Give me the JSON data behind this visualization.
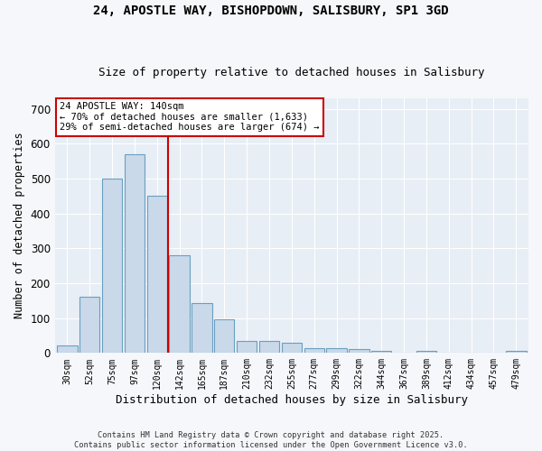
{
  "title": "24, APOSTLE WAY, BISHOPDOWN, SALISBURY, SP1 3GD",
  "subtitle": "Size of property relative to detached houses in Salisbury",
  "xlabel": "Distribution of detached houses by size in Salisbury",
  "ylabel": "Number of detached properties",
  "bar_labels": [
    "30sqm",
    "52sqm",
    "75sqm",
    "97sqm",
    "120sqm",
    "142sqm",
    "165sqm",
    "187sqm",
    "210sqm",
    "232sqm",
    "255sqm",
    "277sqm",
    "299sqm",
    "322sqm",
    "344sqm",
    "367sqm",
    "389sqm",
    "412sqm",
    "434sqm",
    "457sqm",
    "479sqm"
  ],
  "bar_values": [
    22,
    160,
    500,
    570,
    450,
    280,
    143,
    97,
    35,
    34,
    30,
    13,
    14,
    10,
    5,
    0,
    5,
    0,
    0,
    0,
    5
  ],
  "bar_color": "#c9d9ea",
  "bar_edge_color": "#6a9fc0",
  "vline_color": "#cc0000",
  "annotation_text": "24 APOSTLE WAY: 140sqm\n← 70% of detached houses are smaller (1,633)\n29% of semi-detached houses are larger (674) →",
  "annotation_box_color": "#ffffff",
  "annotation_box_edge": "#cc0000",
  "ylim": [
    0,
    730
  ],
  "yticks": [
    0,
    100,
    200,
    300,
    400,
    500,
    600,
    700
  ],
  "bg_color": "#e8eef5",
  "fig_bg_color": "#f5f7fa",
  "footer1": "Contains HM Land Registry data © Crown copyright and database right 2025.",
  "footer2": "Contains public sector information licensed under the Open Government Licence v3.0."
}
